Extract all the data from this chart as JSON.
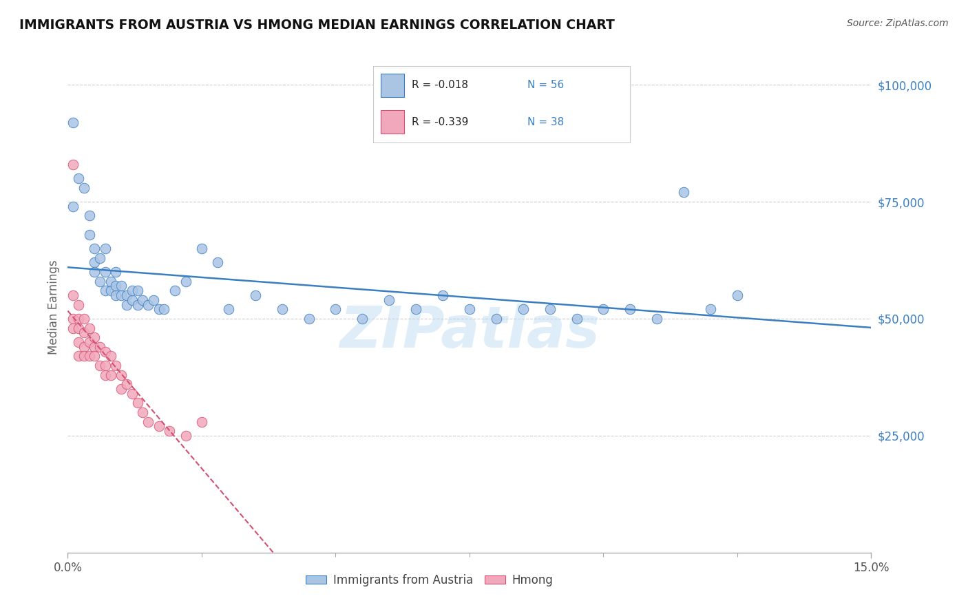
{
  "title": "IMMIGRANTS FROM AUSTRIA VS HMONG MEDIAN EARNINGS CORRELATION CHART",
  "source": "Source: ZipAtlas.com",
  "ylabel": "Median Earnings",
  "x_min": 0.0,
  "x_max": 0.15,
  "y_min": 0,
  "y_max": 105000,
  "y_ticks": [
    25000,
    50000,
    75000,
    100000
  ],
  "y_tick_labels": [
    "$25,000",
    "$50,000",
    "$75,000",
    "$100,000"
  ],
  "x_tick_major": [
    0.0,
    0.15
  ],
  "x_tick_major_labels": [
    "0.0%",
    "15.0%"
  ],
  "x_tick_minor": [
    0.025,
    0.05,
    0.075,
    0.1,
    0.125
  ],
  "legend_labels": [
    "Immigrants from Austria",
    "Hmong"
  ],
  "watermark": "ZIPatlas",
  "austria_color": "#aac4e4",
  "hmong_color": "#f2a8bc",
  "austria_line_color": "#3a7fc1",
  "hmong_line_color": "#d45070",
  "austria_R": -0.018,
  "austria_N": 56,
  "hmong_R": -0.339,
  "hmong_N": 38,
  "austria_scatter_x": [
    0.001,
    0.001,
    0.002,
    0.003,
    0.004,
    0.004,
    0.005,
    0.005,
    0.005,
    0.006,
    0.006,
    0.007,
    0.007,
    0.007,
    0.008,
    0.008,
    0.009,
    0.009,
    0.009,
    0.01,
    0.01,
    0.011,
    0.011,
    0.012,
    0.012,
    0.013,
    0.013,
    0.014,
    0.015,
    0.016,
    0.017,
    0.018,
    0.02,
    0.022,
    0.025,
    0.028,
    0.03,
    0.035,
    0.04,
    0.045,
    0.05,
    0.055,
    0.06,
    0.065,
    0.07,
    0.075,
    0.08,
    0.085,
    0.09,
    0.095,
    0.1,
    0.105,
    0.11,
    0.115,
    0.12,
    0.125
  ],
  "austria_scatter_y": [
    92000,
    74000,
    80000,
    78000,
    68000,
    72000,
    62000,
    65000,
    60000,
    58000,
    63000,
    56000,
    60000,
    65000,
    56000,
    58000,
    55000,
    57000,
    60000,
    55000,
    57000,
    53000,
    55000,
    54000,
    56000,
    53000,
    56000,
    54000,
    53000,
    54000,
    52000,
    52000,
    56000,
    58000,
    65000,
    62000,
    52000,
    55000,
    52000,
    50000,
    52000,
    50000,
    54000,
    52000,
    55000,
    52000,
    50000,
    52000,
    52000,
    50000,
    52000,
    52000,
    50000,
    77000,
    52000,
    55000
  ],
  "hmong_scatter_x": [
    0.001,
    0.001,
    0.001,
    0.001,
    0.002,
    0.002,
    0.002,
    0.002,
    0.002,
    0.003,
    0.003,
    0.003,
    0.003,
    0.004,
    0.004,
    0.004,
    0.005,
    0.005,
    0.005,
    0.006,
    0.006,
    0.007,
    0.007,
    0.007,
    0.008,
    0.008,
    0.009,
    0.01,
    0.01,
    0.011,
    0.012,
    0.013,
    0.014,
    0.015,
    0.017,
    0.019,
    0.022,
    0.025
  ],
  "hmong_scatter_y": [
    83000,
    55000,
    50000,
    48000,
    53000,
    50000,
    48000,
    45000,
    42000,
    50000,
    47000,
    44000,
    42000,
    48000,
    45000,
    42000,
    46000,
    44000,
    42000,
    44000,
    40000,
    43000,
    40000,
    38000,
    42000,
    38000,
    40000,
    38000,
    35000,
    36000,
    34000,
    32000,
    30000,
    28000,
    27000,
    26000,
    25000,
    28000
  ]
}
